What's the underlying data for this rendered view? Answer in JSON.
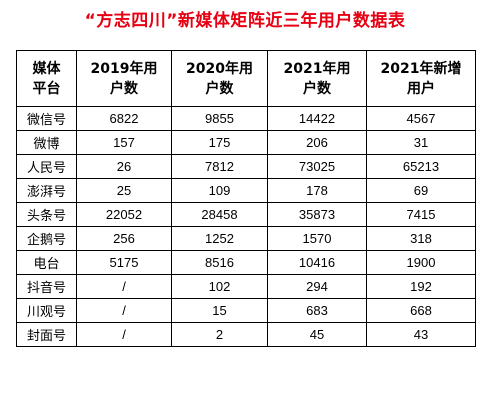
{
  "title": "“方志四川”新媒体矩阵近三年用户数据表",
  "table": {
    "headers": [
      [
        "媒体",
        "平台"
      ],
      [
        "2019年用",
        "户数"
      ],
      [
        "2020年用",
        "户数"
      ],
      [
        "2021年用",
        "户数"
      ],
      [
        "2021年新增",
        "用户"
      ]
    ],
    "rows": [
      [
        "微信号",
        "6822",
        "9855",
        "14422",
        "4567"
      ],
      [
        "微博",
        "157",
        "175",
        "206",
        "31"
      ],
      [
        "人民号",
        "26",
        "7812",
        "73025",
        "65213"
      ],
      [
        "澎湃号",
        "25",
        "109",
        "178",
        "69"
      ],
      [
        "头条号",
        "22052",
        "28458",
        "35873",
        "7415"
      ],
      [
        "企鹅号",
        "256",
        "1252",
        "1570",
        "318"
      ],
      [
        "电台",
        "5175",
        "8516",
        "10416",
        "1900"
      ],
      [
        "抖音号",
        "/",
        "102",
        "294",
        "192"
      ],
      [
        "川观号",
        "/",
        "15",
        "683",
        "668"
      ],
      [
        "封面号",
        "/",
        "2",
        "45",
        "43"
      ]
    ]
  },
  "colors": {
    "title": "#e60012",
    "text": "#000000",
    "border": "#000000"
  }
}
